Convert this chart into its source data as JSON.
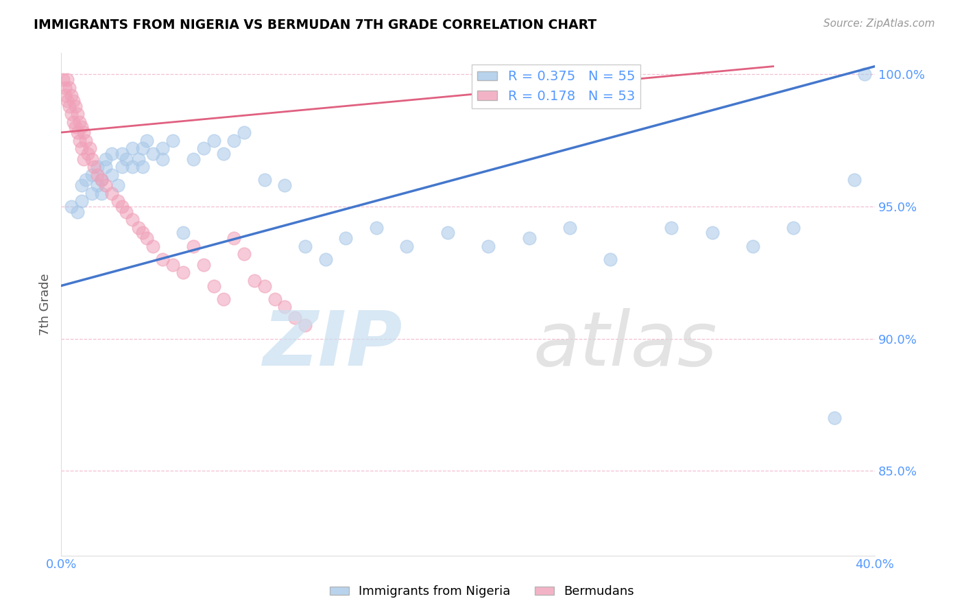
{
  "title": "IMMIGRANTS FROM NIGERIA VS BERMUDAN 7TH GRADE CORRELATION CHART",
  "source_text": "Source: ZipAtlas.com",
  "ylabel": "7th Grade",
  "xlim": [
    0.0,
    0.4
  ],
  "ylim": [
    0.818,
    1.008
  ],
  "yticks": [
    0.85,
    0.9,
    0.95,
    1.0
  ],
  "ytick_labels": [
    "85.0%",
    "90.0%",
    "95.0%",
    "100.0%"
  ],
  "xticks": [
    0.0,
    0.08,
    0.16,
    0.24,
    0.32,
    0.4
  ],
  "xtick_labels": [
    "0.0%",
    "",
    "",
    "",
    "",
    "40.0%"
  ],
  "blue_color": "#a8c8e8",
  "pink_color": "#f0a0b8",
  "blue_line_color": "#4477cc",
  "pink_line_color": "#e06080",
  "blue_scatter_x": [
    0.005,
    0.008,
    0.01,
    0.01,
    0.012,
    0.015,
    0.015,
    0.018,
    0.018,
    0.02,
    0.02,
    0.022,
    0.022,
    0.025,
    0.025,
    0.028,
    0.03,
    0.03,
    0.032,
    0.035,
    0.035,
    0.038,
    0.04,
    0.04,
    0.042,
    0.045,
    0.05,
    0.05,
    0.055,
    0.06,
    0.065,
    0.07,
    0.075,
    0.08,
    0.085,
    0.09,
    0.1,
    0.11,
    0.12,
    0.13,
    0.14,
    0.155,
    0.17,
    0.19,
    0.21,
    0.23,
    0.25,
    0.27,
    0.3,
    0.32,
    0.34,
    0.36,
    0.38,
    0.39,
    0.395
  ],
  "blue_scatter_y": [
    0.95,
    0.948,
    0.952,
    0.958,
    0.96,
    0.955,
    0.962,
    0.958,
    0.965,
    0.96,
    0.955,
    0.965,
    0.968,
    0.97,
    0.962,
    0.958,
    0.965,
    0.97,
    0.968,
    0.972,
    0.965,
    0.968,
    0.965,
    0.972,
    0.975,
    0.97,
    0.968,
    0.972,
    0.975,
    0.94,
    0.968,
    0.972,
    0.975,
    0.97,
    0.975,
    0.978,
    0.96,
    0.958,
    0.935,
    0.93,
    0.938,
    0.942,
    0.935,
    0.94,
    0.935,
    0.938,
    0.942,
    0.93,
    0.942,
    0.94,
    0.935,
    0.942,
    0.87,
    0.96,
    1.0
  ],
  "pink_scatter_x": [
    0.001,
    0.002,
    0.002,
    0.003,
    0.003,
    0.004,
    0.004,
    0.005,
    0.005,
    0.006,
    0.006,
    0.007,
    0.007,
    0.008,
    0.008,
    0.009,
    0.009,
    0.01,
    0.01,
    0.011,
    0.011,
    0.012,
    0.013,
    0.014,
    0.015,
    0.016,
    0.018,
    0.02,
    0.022,
    0.025,
    0.028,
    0.03,
    0.032,
    0.035,
    0.038,
    0.04,
    0.042,
    0.045,
    0.05,
    0.055,
    0.06,
    0.065,
    0.07,
    0.075,
    0.08,
    0.085,
    0.09,
    0.095,
    0.1,
    0.105,
    0.11,
    0.115,
    0.12
  ],
  "pink_scatter_y": [
    0.998,
    0.995,
    0.992,
    0.998,
    0.99,
    0.995,
    0.988,
    0.992,
    0.985,
    0.99,
    0.982,
    0.988,
    0.98,
    0.985,
    0.978,
    0.982,
    0.975,
    0.98,
    0.972,
    0.978,
    0.968,
    0.975,
    0.97,
    0.972,
    0.968,
    0.965,
    0.962,
    0.96,
    0.958,
    0.955,
    0.952,
    0.95,
    0.948,
    0.945,
    0.942,
    0.94,
    0.938,
    0.935,
    0.93,
    0.928,
    0.925,
    0.935,
    0.928,
    0.92,
    0.915,
    0.938,
    0.932,
    0.922,
    0.92,
    0.915,
    0.912,
    0.908,
    0.905
  ],
  "blue_trend_x0": 0.0,
  "blue_trend_y0": 0.92,
  "blue_trend_x1": 0.4,
  "blue_trend_y1": 1.003,
  "pink_trend_x0": 0.0,
  "pink_trend_y0": 0.978,
  "pink_trend_x1": 0.35,
  "pink_trend_y1": 1.003
}
